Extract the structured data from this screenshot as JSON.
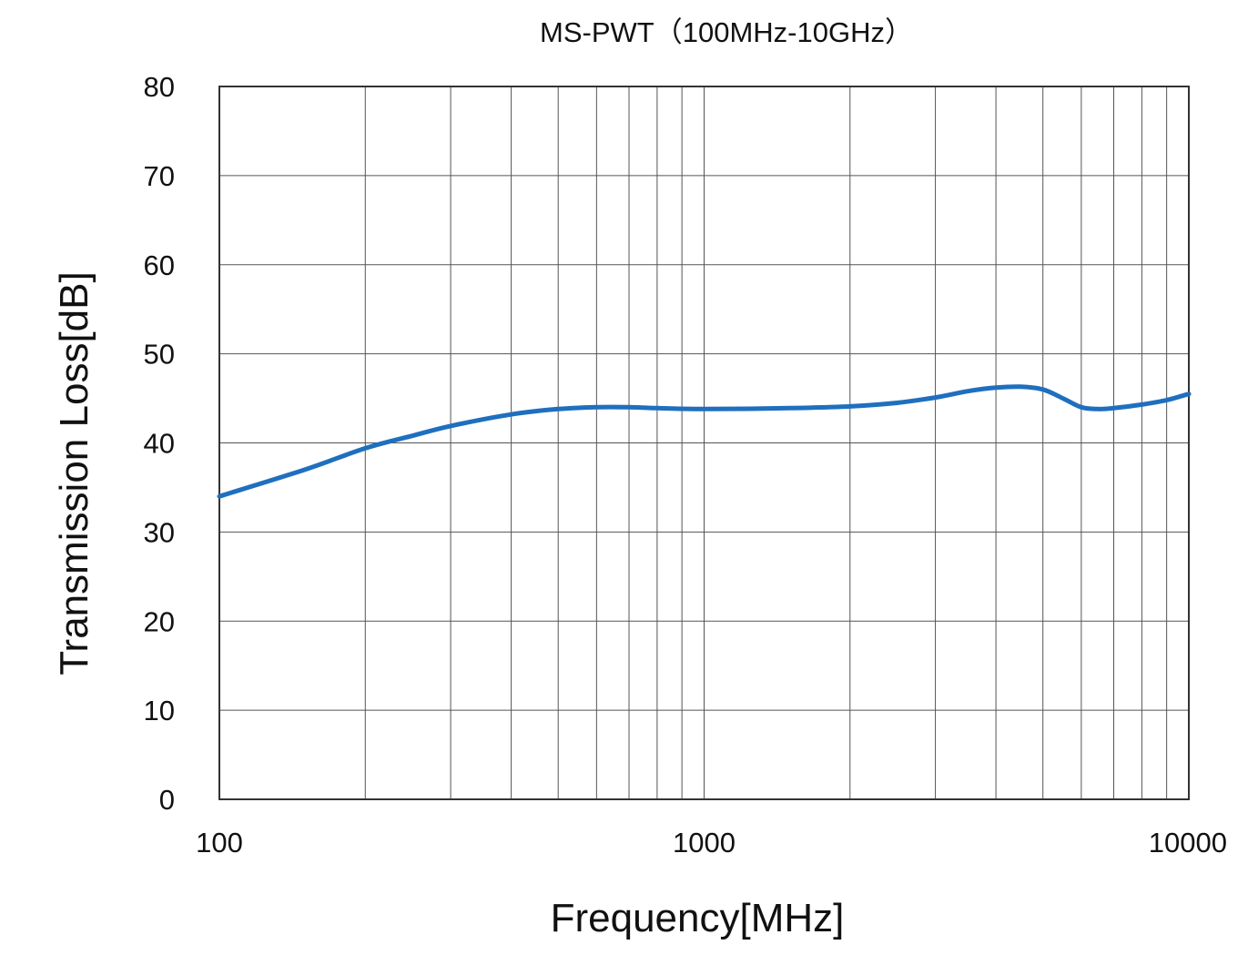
{
  "chart_data": {
    "type": "line",
    "title": "MS-PWT（100MHz-10GHz）",
    "xlabel": "Frequency[MHz]",
    "ylabel": "Transmission Loss[dB]",
    "xscale": "log",
    "xlim": [
      100,
      10000
    ],
    "ylim": [
      0,
      80
    ],
    "grid": true,
    "x_ticks": [
      100,
      1000,
      10000
    ],
    "x_tick_labels": [
      "100",
      "1000",
      "10000"
    ],
    "y_ticks": [
      0,
      10,
      20,
      30,
      40,
      50,
      60,
      70,
      80
    ],
    "y_tick_labels": [
      "0",
      "10",
      "20",
      "30",
      "40",
      "50",
      "60",
      "70",
      "80"
    ],
    "series": [
      {
        "name": "MS-PWT",
        "color": "#1f6fbf",
        "x": [
          100,
          150,
          200,
          250,
          300,
          400,
          500,
          600,
          700,
          800,
          1000,
          1500,
          2000,
          2500,
          3000,
          3500,
          4000,
          4500,
          5000,
          5500,
          6000,
          6500,
          7000,
          8000,
          9000,
          10000
        ],
        "y": [
          34.0,
          37.0,
          39.4,
          40.8,
          41.9,
          43.2,
          43.8,
          44.0,
          44.0,
          43.9,
          43.8,
          43.9,
          44.1,
          44.5,
          45.1,
          45.8,
          46.2,
          46.3,
          46.0,
          45.0,
          44.0,
          43.8,
          43.9,
          44.3,
          44.8,
          45.5
        ]
      }
    ]
  }
}
